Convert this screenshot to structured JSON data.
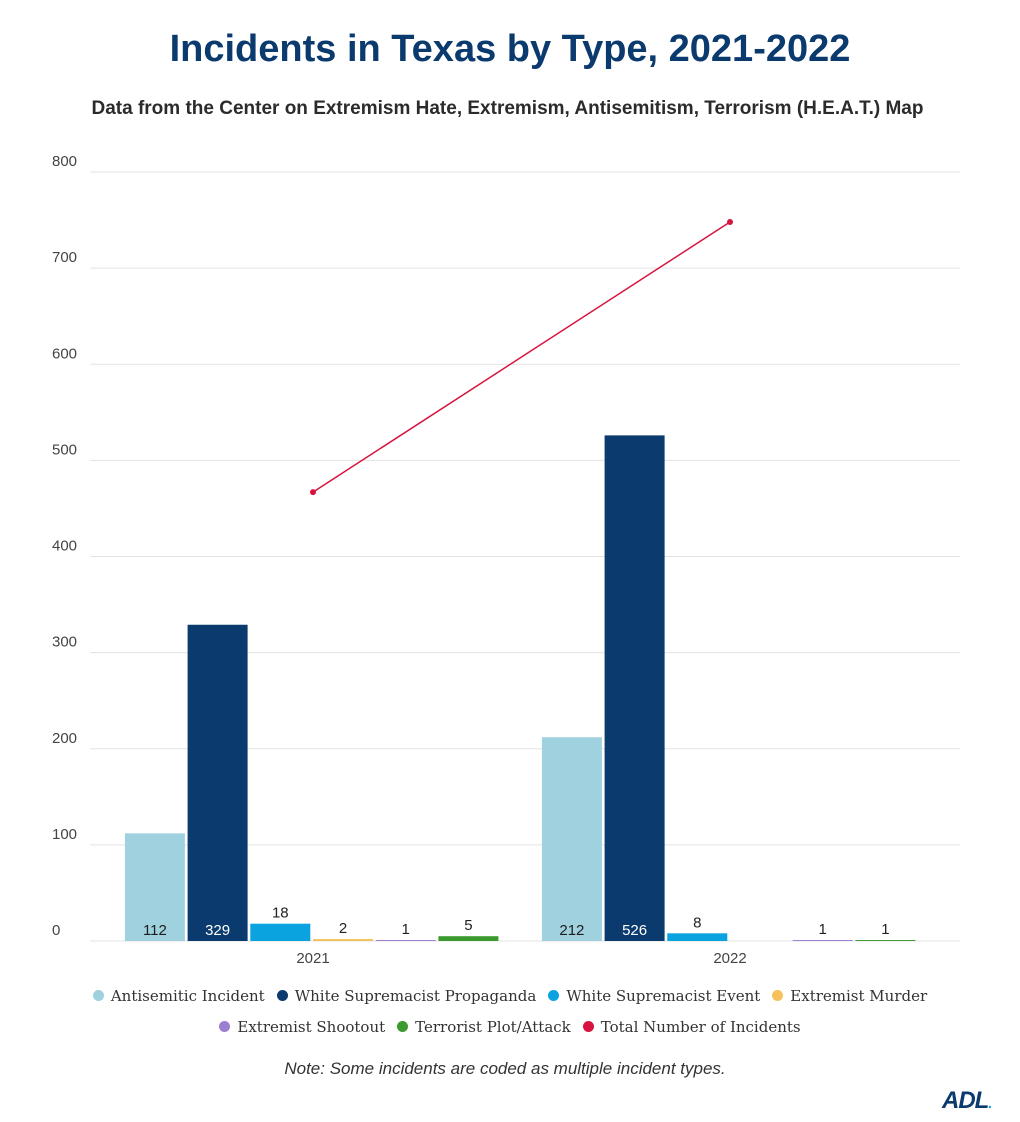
{
  "chart_data": {
    "type": "bar",
    "title": "Incidents in Texas by Type, 2021-2022",
    "subtitle": "Data from the Center on Extremism Hate, Extremism, Antisemitism, Terrorism (H.E.A.T.) Map",
    "categories": [
      "2021",
      "2022"
    ],
    "ylim": [
      0,
      800
    ],
    "yticks": [
      "0",
      "100",
      "200",
      "300",
      "400",
      "500",
      "600",
      "700",
      "800"
    ],
    "grid": true,
    "legend_position": "bottom",
    "series": [
      {
        "name": "Antisemitic Incident",
        "values": [
          112,
          212
        ],
        "labels": [
          "112",
          "212"
        ],
        "color": "#9fd1df"
      },
      {
        "name": "White Supremacist Propaganda",
        "values": [
          329,
          526
        ],
        "labels": [
          "329",
          "526"
        ],
        "color": "#0b3a6e"
      },
      {
        "name": "White Supremacist Event",
        "values": [
          18,
          8
        ],
        "labels": [
          "18",
          "8"
        ],
        "color": "#0aa3df"
      },
      {
        "name": "Extremist Murder",
        "values": [
          2,
          0
        ],
        "labels": [
          "2",
          ""
        ],
        "color": "#f6c15a"
      },
      {
        "name": "Extremist Shootout",
        "values": [
          1,
          1
        ],
        "labels": [
          "1",
          "1"
        ],
        "color": "#9b7fd1"
      },
      {
        "name": "Terrorist Plot/Attack",
        "values": [
          5,
          1
        ],
        "labels": [
          "5",
          "1"
        ],
        "color": "#3b9a2e"
      }
    ],
    "line_series": {
      "name": "Total Number of Incidents",
      "values": [
        467,
        748
      ],
      "color": "#d7133f"
    }
  },
  "note": "Note: Some incidents are coded as multiple incident types.",
  "logo": "ADL",
  "logo_mark": "."
}
